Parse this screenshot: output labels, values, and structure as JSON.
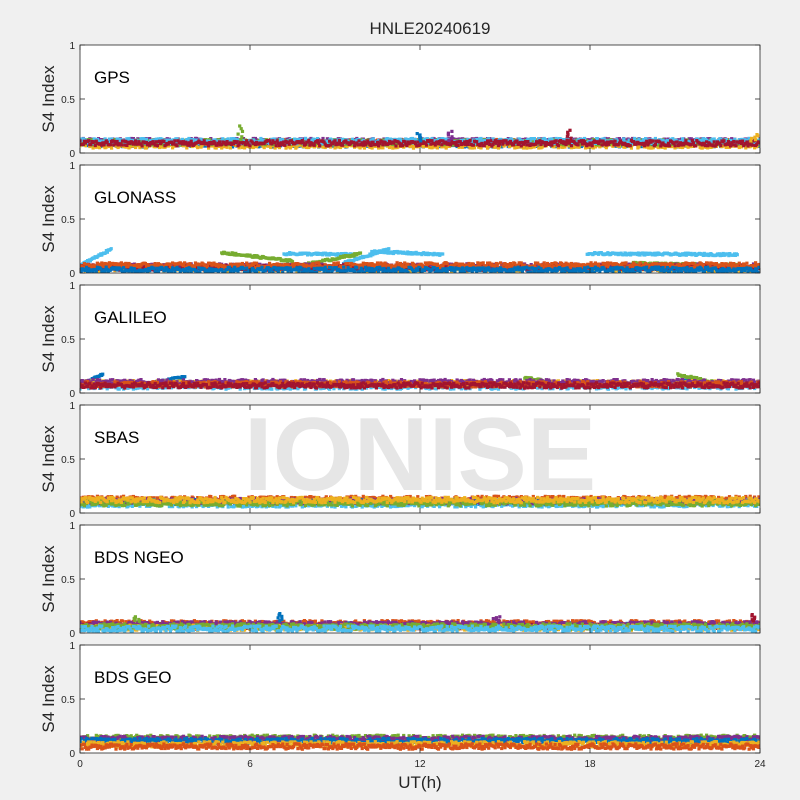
{
  "figure": {
    "title": "HNLE20240619",
    "watermark": "IONISE",
    "xlabel": "UT(h)",
    "xticks": [
      "0",
      "6",
      "12",
      "18",
      "24"
    ],
    "ylabel": "S4 Index",
    "yticks": [
      "0",
      "0.5",
      "1"
    ]
  },
  "palette": [
    "#0072BD",
    "#D95319",
    "#EDB120",
    "#7E2F8E",
    "#77AC30",
    "#4DBEEE",
    "#A2142F"
  ],
  "chart_data": [
    {
      "type": "scatter",
      "panel_label": "GPS",
      "xlim": [
        0,
        24
      ],
      "ylim": [
        0,
        1
      ],
      "series_profiles": [
        {
          "color_index": 0,
          "segments": [
            [
              0,
              24,
              0.08
            ]
          ]
        },
        {
          "color_index": 1,
          "segments": [
            [
              0,
              24,
              0.1
            ]
          ]
        },
        {
          "color_index": 2,
          "segments": [
            [
              0,
              24,
              0.07
            ]
          ]
        },
        {
          "color_index": 3,
          "segments": [
            [
              0,
              24,
              0.11
            ]
          ]
        },
        {
          "color_index": 4,
          "segments": [
            [
              0,
              24,
              0.1
            ]
          ]
        },
        {
          "color_index": 5,
          "segments": [
            [
              0,
              24,
              0.11
            ]
          ]
        },
        {
          "color_index": 6,
          "segments": [
            [
              0,
              24,
              0.09
            ]
          ]
        }
      ],
      "peaks": [
        [
          5.7,
          0.25
        ],
        [
          11.9,
          0.18
        ],
        [
          13.1,
          0.2
        ],
        [
          17.3,
          0.21
        ],
        [
          23.8,
          0.17
        ]
      ]
    },
    {
      "type": "scatter",
      "panel_label": "GLONASS",
      "xlim": [
        0,
        24
      ],
      "ylim": [
        0,
        1
      ],
      "series_profiles": [
        {
          "color_index": 5,
          "segments": [
            [
              0,
              1.1,
              0.07,
              0.22
            ],
            [
              7.2,
              9.7,
              0.18,
              0.17
            ],
            [
              9.3,
              10.9,
              0.09,
              0.22
            ],
            [
              10.3,
              12.8,
              0.2,
              0.17
            ],
            [
              17.9,
              23.2,
              0.18,
              0.17
            ]
          ]
        },
        {
          "color_index": 4,
          "segments": [
            [
              5.0,
              7.5,
              0.19,
              0.11
            ],
            [
              7.8,
              9.9,
              0.07,
              0.18
            ],
            [
              19.5,
              23.2,
              0.09,
              0.07
            ]
          ]
        },
        {
          "color_index": 2,
          "segments": [
            [
              0,
              24,
              0.04
            ]
          ]
        },
        {
          "color_index": 3,
          "segments": [
            [
              0,
              24,
              0.06
            ]
          ]
        },
        {
          "color_index": 6,
          "segments": [
            [
              0,
              24,
              0.05
            ]
          ]
        },
        {
          "color_index": 1,
          "segments": [
            [
              0,
              24,
              0.07
            ]
          ]
        },
        {
          "color_index": 0,
          "segments": [
            [
              0,
              24,
              0.03
            ]
          ]
        }
      ],
      "peaks": []
    },
    {
      "type": "scatter",
      "panel_label": "GALILEO",
      "xlim": [
        0,
        24
      ],
      "ylim": [
        0,
        1
      ],
      "series_profiles": [
        {
          "color_index": 0,
          "segments": [
            [
              0,
              0.8,
              0.08,
              0.17
            ],
            [
              2.1,
              3.7,
              0.07,
              0.15
            ],
            [
              20.2,
              21.7,
              0.06,
              0.13
            ]
          ]
        },
        {
          "color_index": 4,
          "segments": [
            [
              15.7,
              17.2,
              0.14,
              0.08
            ],
            [
              21.1,
              22.9,
              0.17,
              0.07
            ]
          ]
        },
        {
          "color_index": 5,
          "segments": [
            [
              0,
              24,
              0.06
            ]
          ]
        },
        {
          "color_index": 2,
          "segments": [
            [
              0,
              24,
              0.09
            ]
          ]
        },
        {
          "color_index": 3,
          "segments": [
            [
              0,
              24,
              0.1
            ]
          ]
        },
        {
          "color_index": 1,
          "segments": [
            [
              0,
              24,
              0.08
            ]
          ]
        },
        {
          "color_index": 6,
          "segments": [
            [
              0,
              24,
              0.07
            ]
          ]
        }
      ],
      "peaks": []
    },
    {
      "type": "scatter",
      "panel_label": "SBAS",
      "xlim": [
        0,
        24
      ],
      "ylim": [
        0,
        1
      ],
      "series_profiles": [
        {
          "color_index": 1,
          "segments": [
            [
              0,
              24,
              0.13
            ]
          ]
        },
        {
          "color_index": 0,
          "segments": [
            [
              0,
              24,
              0.1
            ]
          ]
        },
        {
          "color_index": 5,
          "segments": [
            [
              0,
              24,
              0.08
            ]
          ]
        },
        {
          "color_index": 3,
          "segments": [
            [
              0,
              24,
              0.11
            ]
          ]
        },
        {
          "color_index": 4,
          "segments": [
            [
              0,
              24,
              0.09
            ]
          ]
        },
        {
          "color_index": 2,
          "segments": [
            [
              0,
              24,
              0.12
            ]
          ]
        }
      ],
      "peaks": []
    },
    {
      "type": "scatter",
      "panel_label": "BDS NGEO",
      "xlim": [
        0,
        24
      ],
      "ylim": [
        0,
        1
      ],
      "series_profiles": [
        {
          "color_index": 0,
          "segments": [
            [
              0,
              24,
              0.07
            ]
          ]
        },
        {
          "color_index": 1,
          "segments": [
            [
              0,
              24,
              0.09
            ]
          ]
        },
        {
          "color_index": 6,
          "segments": [
            [
              0,
              24,
              0.06
            ]
          ]
        },
        {
          "color_index": 3,
          "segments": [
            [
              0,
              24,
              0.08
            ]
          ]
        },
        {
          "color_index": 2,
          "segments": [
            [
              0,
              24,
              0.05
            ]
          ]
        },
        {
          "color_index": 4,
          "segments": [
            [
              0,
              24,
              0.06
            ]
          ]
        },
        {
          "color_index": 5,
          "segments": [
            [
              0,
              24,
              0.04
            ]
          ]
        }
      ],
      "peaks": [
        [
          2.0,
          0.15
        ],
        [
          7.1,
          0.18
        ],
        [
          14.7,
          0.15
        ],
        [
          23.7,
          0.17
        ]
      ]
    },
    {
      "type": "scatter",
      "panel_label": "BDS GEO",
      "xlim": [
        0,
        24
      ],
      "ylim": [
        0,
        1
      ],
      "series_profiles": [
        {
          "color_index": 4,
          "segments": [
            [
              0,
              24,
              0.14
            ]
          ]
        },
        {
          "color_index": 3,
          "segments": [
            [
              0,
              24,
              0.13
            ]
          ]
        },
        {
          "color_index": 0,
          "segments": [
            [
              0,
              24,
              0.11
            ]
          ]
        },
        {
          "color_index": 2,
          "segments": [
            [
              0,
              24,
              0.08
            ]
          ]
        },
        {
          "color_index": 1,
          "segments": [
            [
              0,
              24,
              0.06
            ]
          ]
        }
      ],
      "peaks": []
    }
  ]
}
